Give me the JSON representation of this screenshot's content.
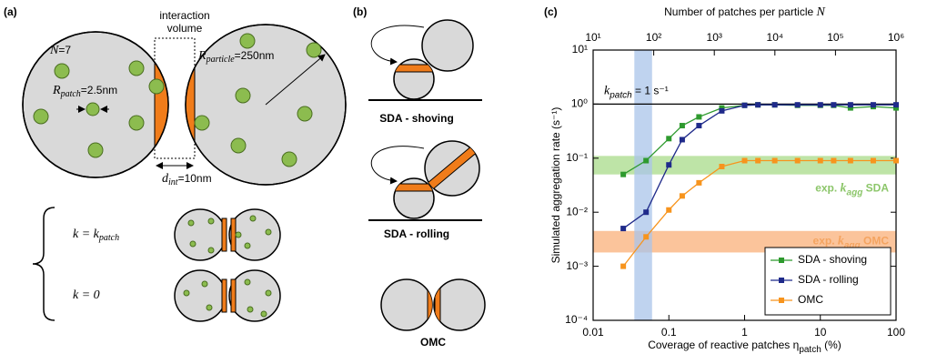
{
  "panel_a": {
    "label": "(a)",
    "interaction_volume": [
      "interaction",
      "volume"
    ],
    "n": {
      "symbol": "N",
      "rest": "=7"
    },
    "r_patch": {
      "symbol": "R",
      "sub": "patch",
      "rest": "=2.5nm"
    },
    "r_particle": {
      "symbol": "R",
      "sub": "particle",
      "rest": "=250nm"
    },
    "d_int": {
      "symbol": "d",
      "sub": "int",
      "rest": "=10nm"
    },
    "k_patch_case": {
      "lhs": "k = k",
      "sub": "patch"
    },
    "k_zero_case": "k = 0"
  },
  "panel_b": {
    "label": "(b)",
    "modes": [
      "SDA - shoving",
      "SDA - rolling",
      "OMC"
    ]
  },
  "chart_data": {
    "type": "line",
    "label": "(c)",
    "x_label": {
      "text": "Coverage of reactive patches η",
      "sub": "patch",
      "rest": " (%)"
    },
    "x2_label": {
      "text": "Number of patches per particle ",
      "symbol": "N"
    },
    "y_label": "Simulated aggregation rate (s⁻¹)",
    "log_x": true,
    "log_y": true,
    "xlim": [
      0.01,
      100
    ],
    "xticks": [
      0.01,
      0.1,
      1,
      10,
      100
    ],
    "x2lim": [
      10,
      1000000
    ],
    "x2ticks": [
      {
        "value": 10,
        "label": "10¹"
      },
      {
        "value": 100,
        "label": "10²"
      },
      {
        "value": 1000,
        "label": "10³"
      },
      {
        "value": 10000,
        "label": "10⁴"
      },
      {
        "value": 100000,
        "label": "10⁵"
      },
      {
        "value": 1000000,
        "label": "10⁶"
      }
    ],
    "ylim": [
      0.0001,
      10
    ],
    "yticks": [
      {
        "value": 0.0001,
        "label": "10⁻⁴"
      },
      {
        "value": 0.001,
        "label": "10⁻³"
      },
      {
        "value": 0.01,
        "label": "10⁻²"
      },
      {
        "value": 0.1,
        "label": "10⁻¹"
      },
      {
        "value": 1,
        "label": "10⁰"
      },
      {
        "value": 10,
        "label": "10¹"
      }
    ],
    "reference_line": {
      "value": 1,
      "label": {
        "symbol": "k",
        "sub": "patch",
        "rest": " = 1 s⁻¹"
      }
    },
    "x_band": {
      "range": [
        0.035,
        0.06
      ],
      "color": "#aac4ea"
    },
    "bands": [
      {
        "range": [
          0.05,
          0.11
        ],
        "color": "#a8db8a",
        "label": {
          "text": "exp. ",
          "symbol": "k",
          "sub": "agg",
          "rest": " SDA"
        },
        "text_color": "#8cc66a"
      },
      {
        "range": [
          0.0018,
          0.0045
        ],
        "color": "#f9b07a",
        "label": {
          "text": "exp. ",
          "symbol": "k",
          "sub": "agg",
          "rest": " OMC"
        },
        "text_color": "#f4a460"
      }
    ],
    "x": [
      0.025,
      0.05,
      0.1,
      0.15,
      0.25,
      0.5,
      1,
      1.5,
      2.5,
      5,
      10,
      15,
      25,
      50,
      100
    ],
    "series": [
      {
        "name": "SDA - shoving",
        "color": "#2e9a2e",
        "values": [
          0.05,
          0.09,
          0.23,
          0.4,
          0.58,
          0.85,
          0.95,
          0.97,
          0.97,
          0.95,
          0.95,
          0.95,
          0.85,
          0.9,
          0.85
        ]
      },
      {
        "name": "SDA - rolling",
        "color": "#1f2a8a",
        "values": [
          0.005,
          0.01,
          0.075,
          0.22,
          0.4,
          0.75,
          0.95,
          0.97,
          0.97,
          0.97,
          0.97,
          0.97,
          0.97,
          0.97,
          0.97
        ]
      },
      {
        "name": "OMC",
        "color": "#f7941d",
        "values": [
          0.001,
          0.0035,
          0.011,
          0.02,
          0.035,
          0.07,
          0.09,
          0.09,
          0.09,
          0.09,
          0.09,
          0.09,
          0.09,
          0.09,
          0.09
        ]
      }
    ],
    "legend": "lower right"
  }
}
